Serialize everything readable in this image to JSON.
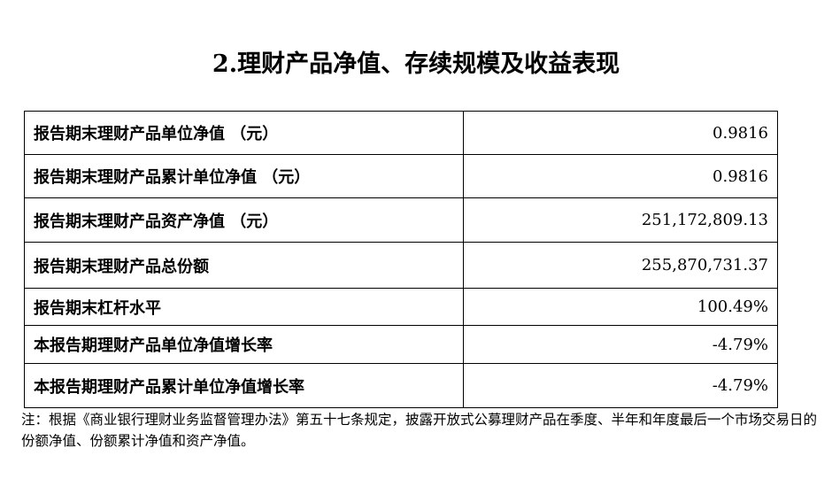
{
  "title": "2.理财产品净值、存续规模及收益表现",
  "rows": [
    {
      "label": "报告期末理财产品单位净值 （元）",
      "value": "0.9816"
    },
    {
      "label": "报告期末理财产品累计单位净值 （元）",
      "value": "0.9816"
    },
    {
      "label": "报告期末理财产品资产净值 （元）",
      "value": "251,172,809.13"
    },
    {
      "label": "报告期末理财产品总份额",
      "value": "255,870,731.37"
    },
    {
      "label": "报告期末杠杆水平",
      "value": "100.49%"
    },
    {
      "label": "本报告期理财产品单位净值增长率",
      "value": "-4.79%"
    },
    {
      "label": "本报告期理财产品累计单位净值增长率",
      "value": "-4.79%"
    }
  ],
  "note": "注：根据《商业银行理财业务监督管理办法》第五十七条规定，披露开放式公募理财产品在季度、半年和年度最后一个市场交易日的份额净值、份额累计净值和资产净值。"
}
